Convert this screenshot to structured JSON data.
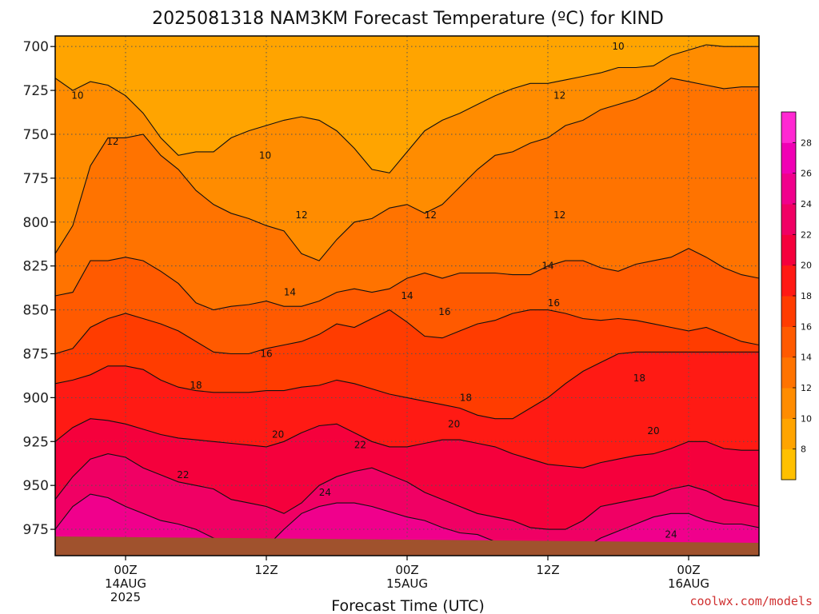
{
  "chart_data": {
    "type": "contour",
    "title": "2025081318 NAM3KM Forecast Temperature (ºC) for KIND",
    "xlabel": "Forecast Time (UTC)",
    "ylabel": "",
    "y_axis": {
      "inverted": true,
      "unit": "hPa",
      "ylim": [
        990,
        694
      ],
      "ticks": [
        700,
        725,
        750,
        775,
        800,
        825,
        850,
        875,
        900,
        925,
        950,
        975
      ]
    },
    "x_axis": {
      "unit": "forecast hours",
      "xlim": [
        -6,
        54
      ],
      "ticks": [
        {
          "hour": 0,
          "labels": [
            "00Z",
            "14AUG",
            "2025"
          ]
        },
        {
          "hour": 12,
          "labels": [
            "12Z"
          ]
        },
        {
          "hour": 24,
          "labels": [
            "00Z",
            "15AUG"
          ]
        },
        {
          "hour": 36,
          "labels": [
            "12Z"
          ]
        },
        {
          "hour": 48,
          "labels": [
            "00Z",
            "16AUG"
          ]
        }
      ]
    },
    "grid": true,
    "contour_interval": 2,
    "colorbar": {
      "placement": "right",
      "ticks": [
        8,
        10,
        12,
        14,
        16,
        18,
        20,
        22,
        24,
        26,
        28
      ],
      "colors": [
        "#ffc000",
        "#ffa400",
        "#ff8c00",
        "#ff7300",
        "#ff5a00",
        "#ff3c00",
        "#ff1a14",
        "#f5003c",
        "#f00064",
        "#f0008c",
        "#f000b4",
        "#ff28d2"
      ]
    },
    "surface_fill": "#a0522d",
    "isotherms": [
      {
        "value": 10,
        "pressure_levels": [
          718,
          725,
          720,
          722,
          728,
          738,
          752,
          762,
          760,
          760,
          752,
          748,
          745,
          742,
          740,
          742,
          748,
          758,
          770,
          772,
          760,
          748,
          742,
          738,
          733,
          728,
          724,
          721,
          721,
          719,
          717,
          715,
          712,
          712,
          711,
          705,
          702,
          699,
          700,
          700,
          700
        ]
      },
      {
        "value": 12,
        "pressure_levels": [
          818,
          802,
          768,
          752,
          752,
          750,
          762,
          770,
          782,
          790,
          795,
          798,
          802,
          805,
          818,
          822,
          810,
          800,
          798,
          792,
          790,
          795,
          790,
          780,
          770,
          762,
          760,
          755,
          752,
          745,
          742,
          736,
          733,
          730,
          725,
          718,
          720,
          722,
          724,
          723,
          723
        ]
      },
      {
        "value": 14,
        "pressure_levels": [
          842,
          840,
          822,
          822,
          820,
          822,
          828,
          835,
          846,
          850,
          848,
          847,
          845,
          848,
          848,
          845,
          840,
          838,
          840,
          838,
          832,
          829,
          832,
          829,
          829,
          829,
          830,
          830,
          825,
          822,
          822,
          826,
          828,
          824,
          822,
          820,
          815,
          820,
          826,
          830,
          832
        ]
      },
      {
        "value": 16,
        "pressure_levels": [
          875,
          872,
          860,
          855,
          852,
          855,
          858,
          862,
          868,
          874,
          875,
          875,
          872,
          870,
          868,
          864,
          858,
          860,
          855,
          850,
          857,
          865,
          866,
          862,
          858,
          856,
          852,
          850,
          850,
          852,
          855,
          856,
          855,
          856,
          858,
          860,
          862,
          860,
          864,
          868,
          870
        ]
      },
      {
        "value": 18,
        "pressure_levels": [
          892,
          890,
          887,
          882,
          882,
          884,
          890,
          894,
          896,
          897,
          897,
          897,
          896,
          896,
          894,
          893,
          890,
          892,
          895,
          898,
          900,
          902,
          904,
          906,
          910,
          912,
          912,
          906,
          900,
          892,
          885,
          880,
          875,
          874,
          874,
          874,
          874,
          874,
          874,
          874,
          874
        ]
      },
      {
        "value": 20,
        "pressure_levels": [
          925,
          917,
          912,
          913,
          915,
          918,
          921,
          923,
          924,
          925,
          926,
          927,
          928,
          925,
          920,
          916,
          915,
          920,
          925,
          928,
          928,
          926,
          924,
          924,
          926,
          928,
          932,
          935,
          938,
          939,
          940,
          937,
          935,
          933,
          932,
          929,
          925,
          925,
          929,
          930,
          930
        ]
      },
      {
        "value": 22,
        "pressure_levels": [
          958,
          945,
          935,
          932,
          934,
          940,
          944,
          948,
          950,
          952,
          958,
          960,
          962,
          966,
          960,
          950,
          945,
          942,
          940,
          944,
          948,
          954,
          958,
          962,
          966,
          968,
          970,
          974,
          975,
          975,
          970,
          962,
          960,
          958,
          956,
          952,
          950,
          953,
          958,
          960,
          962
        ]
      },
      {
        "value": 24,
        "pressure_levels": [
          975,
          962,
          955,
          957,
          962,
          966,
          970,
          972,
          975,
          980,
          983,
          984,
          985,
          975,
          966,
          962,
          960,
          960,
          962,
          965,
          968,
          970,
          974,
          977,
          978,
          982,
          984,
          986,
          986,
          986,
          986,
          980,
          976,
          972,
          968,
          966,
          966,
          970,
          972,
          972,
          974
        ]
      }
    ],
    "contour_labels": [
      {
        "text": "10",
        "hour": -4.1,
        "pressure": 728
      },
      {
        "text": "10",
        "hour": 11.9,
        "pressure": 762
      },
      {
        "text": "10",
        "hour": 42.0,
        "pressure": 700
      },
      {
        "text": "12",
        "hour": -1.1,
        "pressure": 754
      },
      {
        "text": "12",
        "hour": 15.0,
        "pressure": 796
      },
      {
        "text": "12",
        "hour": 26.0,
        "pressure": 796
      },
      {
        "text": "12",
        "hour": 37.0,
        "pressure": 796
      },
      {
        "text": "12",
        "hour": 37.0,
        "pressure": 728
      },
      {
        "text": "14",
        "hour": 14.0,
        "pressure": 840
      },
      {
        "text": "14",
        "hour": 24.0,
        "pressure": 842
      },
      {
        "text": "14",
        "hour": 36.0,
        "pressure": 825
      },
      {
        "text": "16",
        "hour": 12.0,
        "pressure": 875
      },
      {
        "text": "16",
        "hour": 27.2,
        "pressure": 851
      },
      {
        "text": "16",
        "hour": 36.5,
        "pressure": 846
      },
      {
        "text": "18",
        "hour": 6.0,
        "pressure": 893
      },
      {
        "text": "18",
        "hour": 29.0,
        "pressure": 900
      },
      {
        "text": "18",
        "hour": 43.8,
        "pressure": 889
      },
      {
        "text": "20",
        "hour": 13.0,
        "pressure": 921
      },
      {
        "text": "20",
        "hour": 28.0,
        "pressure": 915
      },
      {
        "text": "20",
        "hour": 45.0,
        "pressure": 919
      },
      {
        "text": "22",
        "hour": 4.9,
        "pressure": 944
      },
      {
        "text": "22",
        "hour": 20.0,
        "pressure": 927
      },
      {
        "text": "24",
        "hour": 17.0,
        "pressure": 954
      },
      {
        "text": "24",
        "hour": 46.5,
        "pressure": 978
      }
    ]
  },
  "credit": "coolwx.com/models"
}
